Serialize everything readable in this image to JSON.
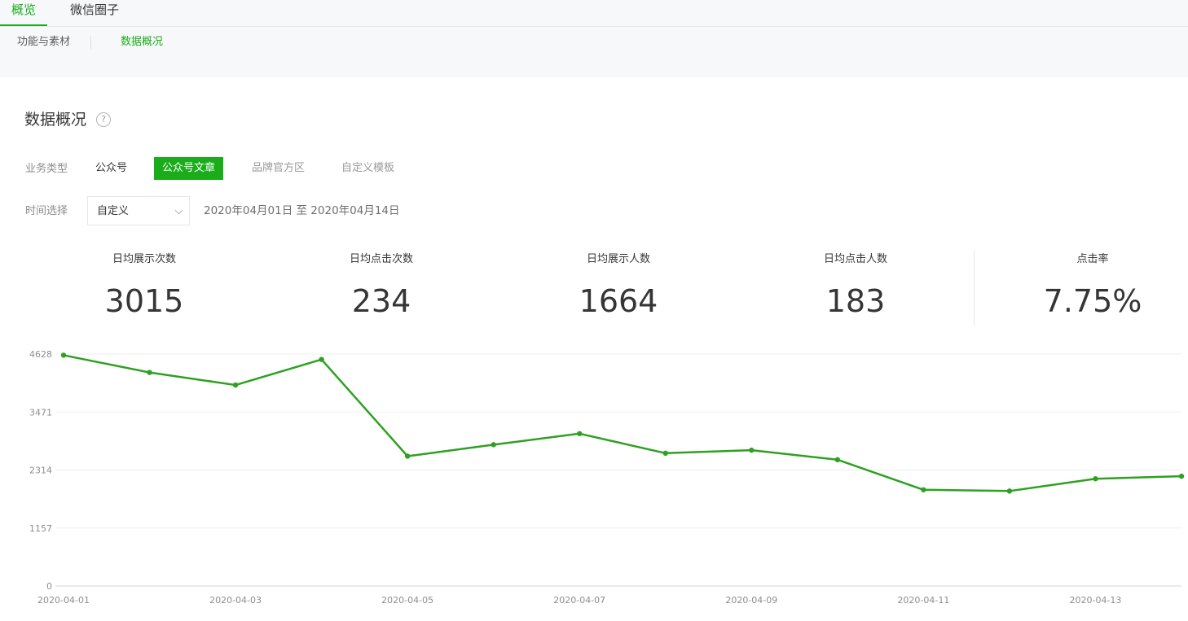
{
  "tabs": [
    {
      "label": "概览",
      "active": true
    },
    {
      "label": "微信圈子",
      "active": false
    }
  ],
  "subtabs": [
    {
      "label": "功能与素材",
      "active": false
    },
    {
      "label": "数据概况",
      "active": true
    }
  ],
  "section": {
    "title": "数据概况",
    "help_icon": "question-circle-icon",
    "help_glyph": "?"
  },
  "filters": {
    "business_type_label": "业务类型",
    "business_types": [
      {
        "label": "公众号",
        "active": false
      },
      {
        "label": "公众号文章",
        "active": true
      },
      {
        "label": "品牌官方区",
        "active": false
      },
      {
        "label": "自定义模板",
        "active": false
      }
    ],
    "time_label": "时间选择",
    "time_select_value": "自定义",
    "date_range": "2020年04月01日 至 2020年04月14日"
  },
  "metrics": [
    {
      "label": "日均展示次数",
      "value": "3015"
    },
    {
      "label": "日均点击次数",
      "value": "234"
    },
    {
      "label": "日均展示人数",
      "value": "1664"
    },
    {
      "label": "日均点击人数",
      "value": "183"
    },
    {
      "label": "点击率",
      "value": "7.75%"
    }
  ],
  "chart_data": {
    "type": "line",
    "title": "",
    "xlabel": "",
    "ylabel": "",
    "x": [
      "2020-04-01",
      "2020-04-02",
      "2020-04-03",
      "2020-04-04",
      "2020-04-05",
      "2020-04-06",
      "2020-04-07",
      "2020-04-08",
      "2020-04-09",
      "2020-04-10",
      "2020-04-11",
      "2020-04-12",
      "2020-04-13",
      "2020-04-14"
    ],
    "x_tick_labels": [
      "2020-04-01",
      "2020-04-03",
      "2020-04-05",
      "2020-04-07",
      "2020-04-09",
      "2020-04-11",
      "2020-04-13"
    ],
    "series": [
      {
        "values": [
          4605,
          4260,
          4010,
          4520,
          2590,
          2820,
          3040,
          2650,
          2710,
          2520,
          1920,
          1895,
          2140,
          2190
        ]
      }
    ],
    "ylim": [
      0,
      4628
    ],
    "y_ticks": [
      0,
      1157,
      2314,
      3471,
      4628
    ],
    "grid": true,
    "line_color": "#2ea121"
  }
}
